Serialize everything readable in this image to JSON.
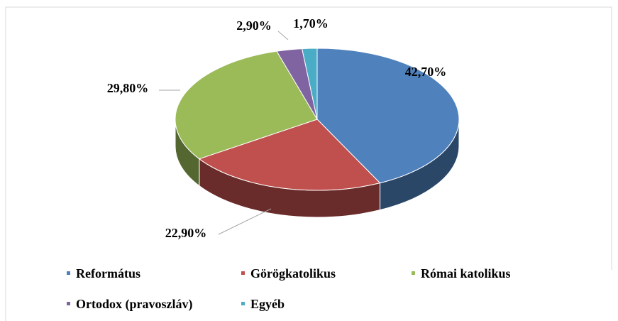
{
  "chart_data": {
    "type": "pie",
    "categories": [
      "Református",
      "Görögkatolikus",
      "Római katolikus",
      "Ortodox (pravoszláv)",
      "Egyéb"
    ],
    "values": [
      42.7,
      22.9,
      29.8,
      2.9,
      1.7
    ],
    "value_labels": [
      "42,70%",
      "22,90%",
      "29,80%",
      "2,90%",
      "1,70%"
    ],
    "colors": [
      "#4f81bd",
      "#c0504d",
      "#9bbb59",
      "#8064a2",
      "#4bacc6"
    ],
    "legend": "bottom"
  }
}
